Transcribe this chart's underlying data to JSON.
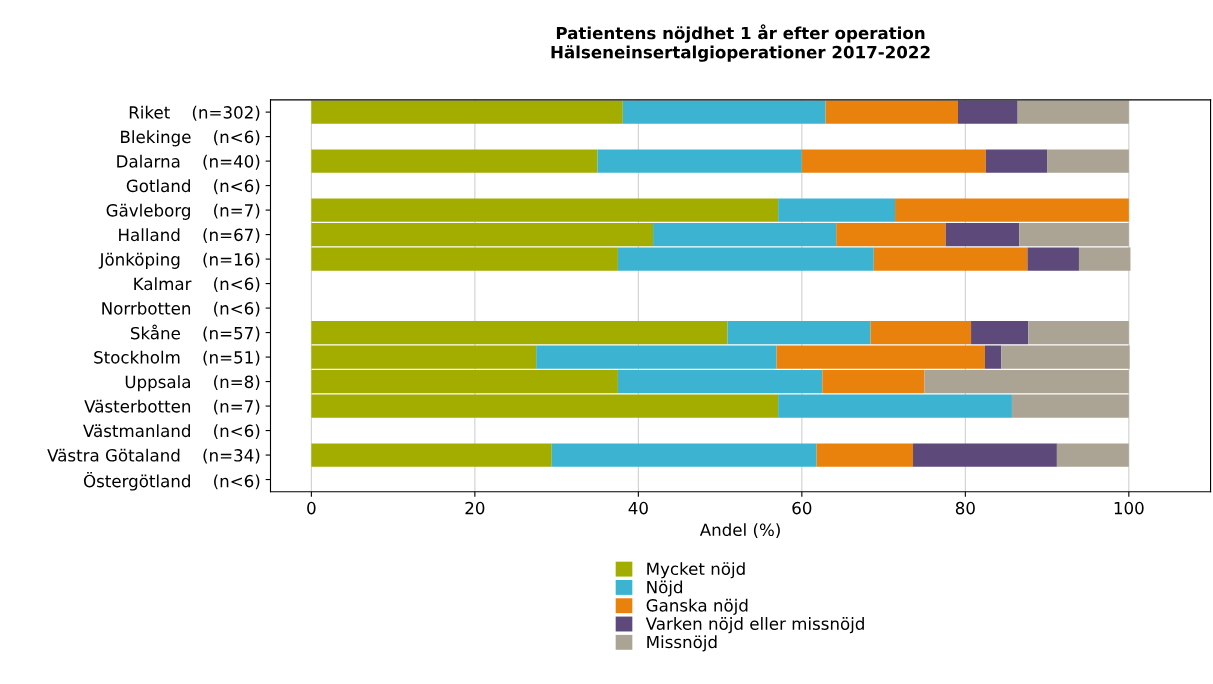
{
  "chart_data": {
    "type": "bar",
    "orientation": "horizontal",
    "stacked": true,
    "title": "Patientens nöjdhet 1 år efter operation\nHälseneinsertalgioperationer 2017-2022",
    "xlabel": "Andel (%)",
    "categories": [
      "Riket    (n=302)",
      "Blekinge    (n<6)",
      "Dalarna    (n=40)",
      "Gotland    (n<6)",
      "Gävleborg    (n=7)",
      "Halland    (n=67)",
      "Jönköping    (n=16)",
      "Kalmar    (n<6)",
      "Norrbotten    (n<6)",
      "Skåne    (n=57)",
      "Stockholm    (n=51)",
      "Uppsala    (n=8)",
      "Västerbotten    (n=7)",
      "Västmanland    (n<6)",
      "Västra Götaland    (n=34)",
      "Östergötland    (n<6)"
    ],
    "series": [
      {
        "name": "Mycket nöjd",
        "color": "#a3ad00",
        "values": [
          38.1,
          null,
          35.0,
          null,
          57.1,
          41.8,
          37.5,
          null,
          null,
          50.9,
          27.5,
          37.5,
          57.1,
          null,
          29.4,
          null
        ]
      },
      {
        "name": "Nöjd",
        "color": "#3cb4d1",
        "values": [
          24.8,
          null,
          25.0,
          null,
          14.3,
          22.4,
          31.3,
          null,
          null,
          17.5,
          29.4,
          25.0,
          28.6,
          null,
          32.4,
          null
        ]
      },
      {
        "name": "Ganska nöjd",
        "color": "#e8820c",
        "values": [
          16.2,
          null,
          22.5,
          null,
          28.6,
          13.4,
          18.8,
          null,
          null,
          12.3,
          25.5,
          12.5,
          0,
          null,
          11.8,
          null
        ]
      },
      {
        "name": "Varken nöjd eller missnöjd",
        "color": "#5d4a7b",
        "values": [
          7.3,
          null,
          7.5,
          null,
          0,
          9.0,
          6.3,
          null,
          null,
          7.0,
          2.0,
          0,
          0,
          null,
          17.6,
          null
        ]
      },
      {
        "name": "Missnöjd",
        "color": "#aba393",
        "values": [
          13.6,
          null,
          10.0,
          null,
          0,
          13.4,
          6.3,
          null,
          null,
          12.3,
          15.7,
          25.0,
          14.3,
          null,
          8.8,
          null
        ]
      }
    ],
    "xlim": [
      -5,
      110
    ],
    "xticks": [
      0,
      20,
      40,
      60,
      80,
      100
    ],
    "grid": "x",
    "legend": "bottom"
  }
}
